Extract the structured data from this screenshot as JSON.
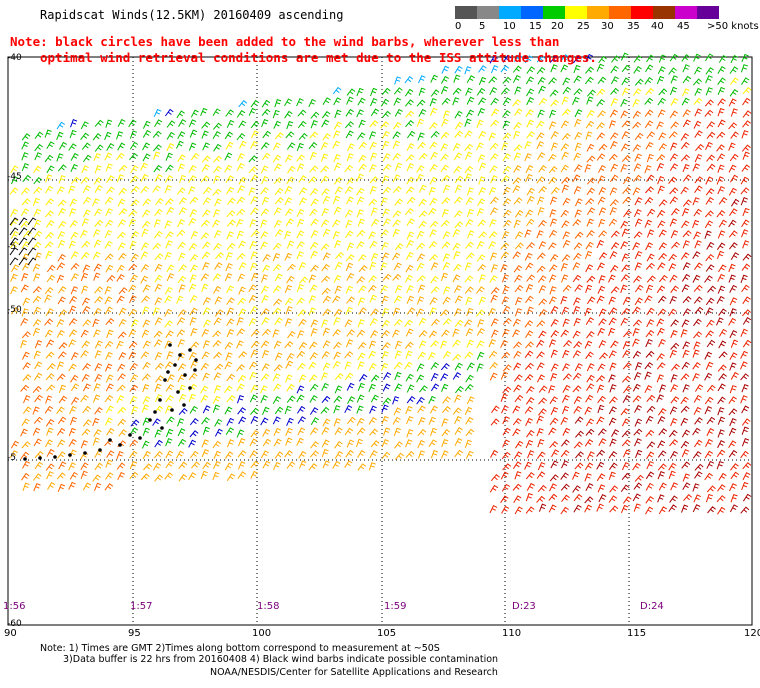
{
  "header": {
    "title": "Rapidscat Winds(12.5KM) 20160409 ascending",
    "note_line1": "Note: black circles have been added to the wind barbs, wherever less than",
    "note_line2": "optimal wind retrieval conditions are met due to the ISS attitude changes."
  },
  "legend": {
    "unit": "knots",
    "labels": [
      "0",
      "5",
      "10",
      "15",
      "20",
      "25",
      "30",
      "35",
      "40",
      "45",
      ">50 knots"
    ],
    "colors": [
      "#555555",
      "#888888",
      "#00aaff",
      "#0066ff",
      "#00cc00",
      "#ffff00",
      "#ffaa00",
      "#ff6600",
      "#ff0000",
      "#993300",
      "#cc00cc",
      "#660099"
    ]
  },
  "map": {
    "lon_labels": [
      "90",
      "95",
      "100",
      "105",
      "110",
      "115",
      "120"
    ],
    "lat_labels": [
      "-40",
      "-45",
      "-5",
      "-50",
      "-5",
      "-60"
    ],
    "time_labels": [
      "1:56",
      "1:57",
      "1:58",
      "1:59",
      "D:23",
      "D:24"
    ],
    "speed_colors": {
      "calm": "#555555",
      "light_blue": "#00aaff",
      "blue": "#0000cc",
      "green": "#00bb00",
      "yellow": "#ffee00",
      "orange": "#ffaa00",
      "dark_orange": "#ff6600",
      "red": "#ee2200",
      "dark_red": "#aa0000",
      "black": "#000000"
    }
  },
  "footer": {
    "line1": "Note: 1) Times are GMT 2)Times along bottom correspond to measurement at ~50S",
    "line2": "3)Data buffer is 22 hrs from 20160408 4) Black wind barbs indicate possible contamination",
    "line3": "NOAA/NESDIS/Center for Satellite Applications and Research"
  }
}
